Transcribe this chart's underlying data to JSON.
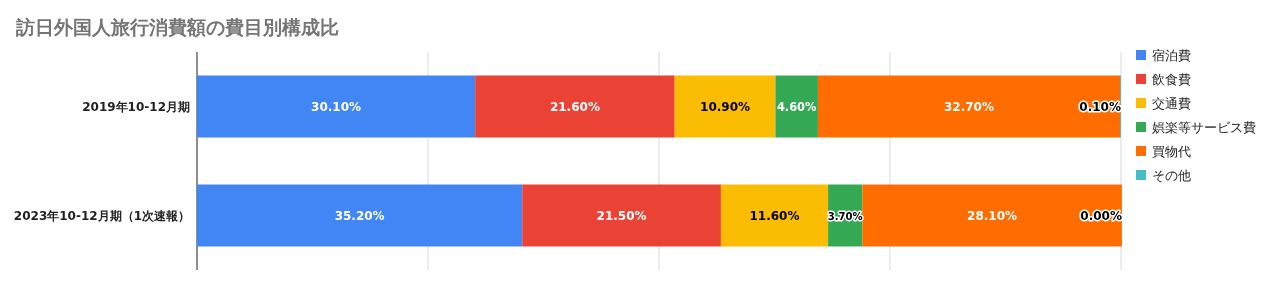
{
  "chart_data": {
    "type": "bar",
    "orientation": "horizontal",
    "stacked": true,
    "title": "訪日外国人旅行消費額の費目別構成比",
    "categories": [
      "2019年10-12月期",
      "2023年10-12月期（1次速報）"
    ],
    "xlim": [
      0,
      100
    ],
    "xticks": [
      {
        "value": 0,
        "label": null
      },
      {
        "value": 25,
        "label": null
      },
      {
        "value": 50,
        "label": null
      },
      {
        "value": 75,
        "label": null
      },
      {
        "value": 100,
        "label": null
      }
    ],
    "tick_labels": "y",
    "grid": "x",
    "legend": "top right",
    "series": [
      {
        "name": "宿泊費",
        "color": "#4285f4",
        "values": [
          30.1,
          35.2
        ],
        "value_labels": [
          "30.10%",
          "35.20%"
        ]
      },
      {
        "name": "飲食費",
        "color": "#ea4335",
        "values": [
          21.6,
          21.5
        ],
        "value_labels": [
          "21.60%",
          "21.50%"
        ]
      },
      {
        "name": "交通費",
        "color": "#fbbc04",
        "values": [
          10.9,
          11.6
        ],
        "value_labels": [
          "10.90%",
          "11.60%"
        ]
      },
      {
        "name": "娯楽等サービス費",
        "color": "#34a853",
        "values": [
          4.6,
          3.7
        ],
        "value_labels": [
          "4.60%",
          "3.70%"
        ]
      },
      {
        "name": "買物代",
        "color": "#ff6d01",
        "values": [
          32.7,
          28.1
        ],
        "value_labels": [
          "32.70%",
          "28.10%"
        ]
      },
      {
        "name": "その他",
        "color": "#46bdc6",
        "values": [
          0.1,
          0.0
        ],
        "value_labels": [
          "0.10%",
          "0.00%"
        ]
      }
    ]
  }
}
